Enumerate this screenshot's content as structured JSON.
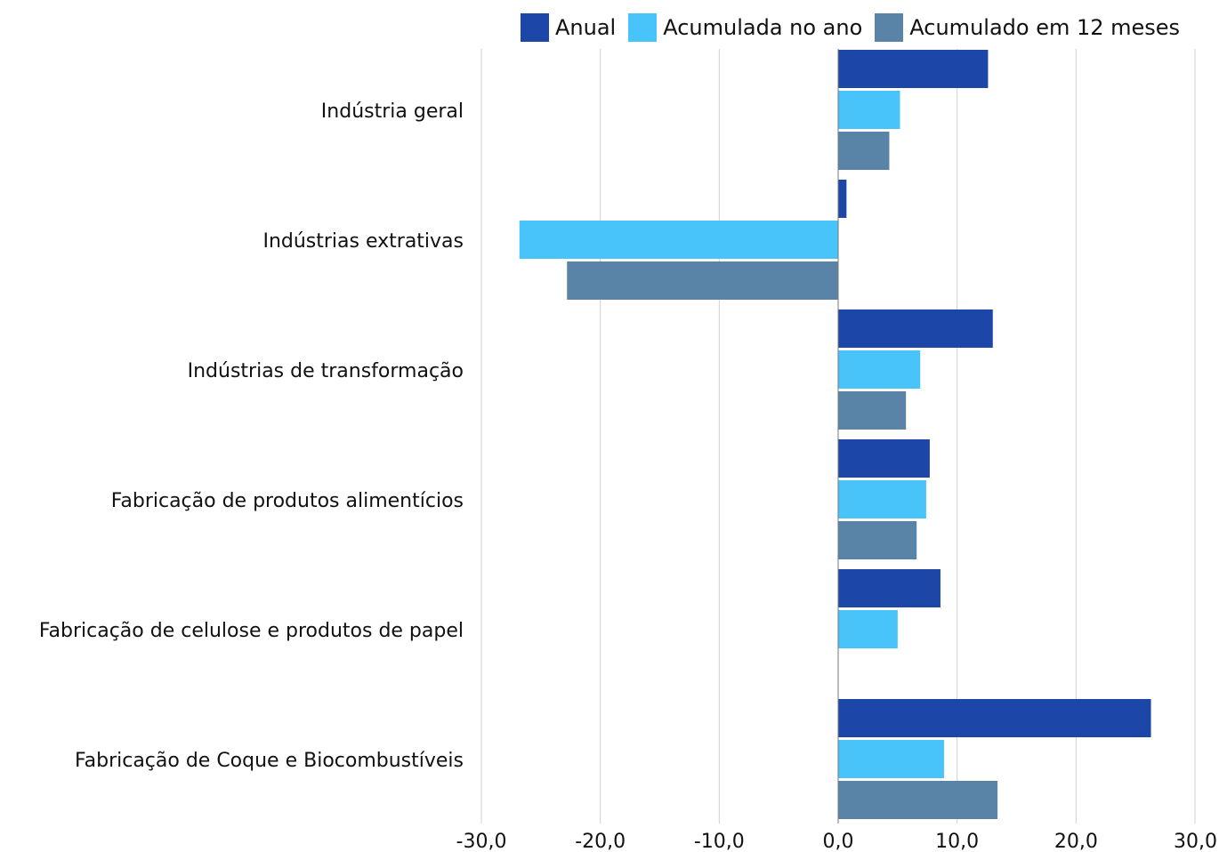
{
  "chart_data": {
    "type": "bar",
    "orientation": "horizontal",
    "categories": [
      "Indústria geral",
      "Indústrias extrativas",
      "Indústrias de transformação",
      "Fabricação de produtos alimentícios",
      "Fabricação de celulose e produtos de papel",
      "Fabricação de Coque e Biocombustíveis"
    ],
    "series": [
      {
        "name": "Anual",
        "color": "#1c47a8",
        "values": [
          12.6,
          0.7,
          13.0,
          7.7,
          8.6,
          26.3
        ]
      },
      {
        "name": "Acumulada no ano",
        "color": "#48c4fb",
        "values": [
          5.2,
          -26.8,
          6.9,
          7.4,
          5.0,
          8.9
        ]
      },
      {
        "name": "Acumulado em 12 meses",
        "color": "#5a83a8",
        "values": [
          4.3,
          -22.8,
          5.7,
          6.6,
          0,
          13.4
        ]
      }
    ],
    "xlim": [
      -30,
      30
    ],
    "xticks": [
      "-30,0",
      "-20,0",
      "-10,0",
      "0,0",
      "10,0",
      "20,0",
      "30,0"
    ],
    "grid": "vertical",
    "legend_position": "top"
  }
}
